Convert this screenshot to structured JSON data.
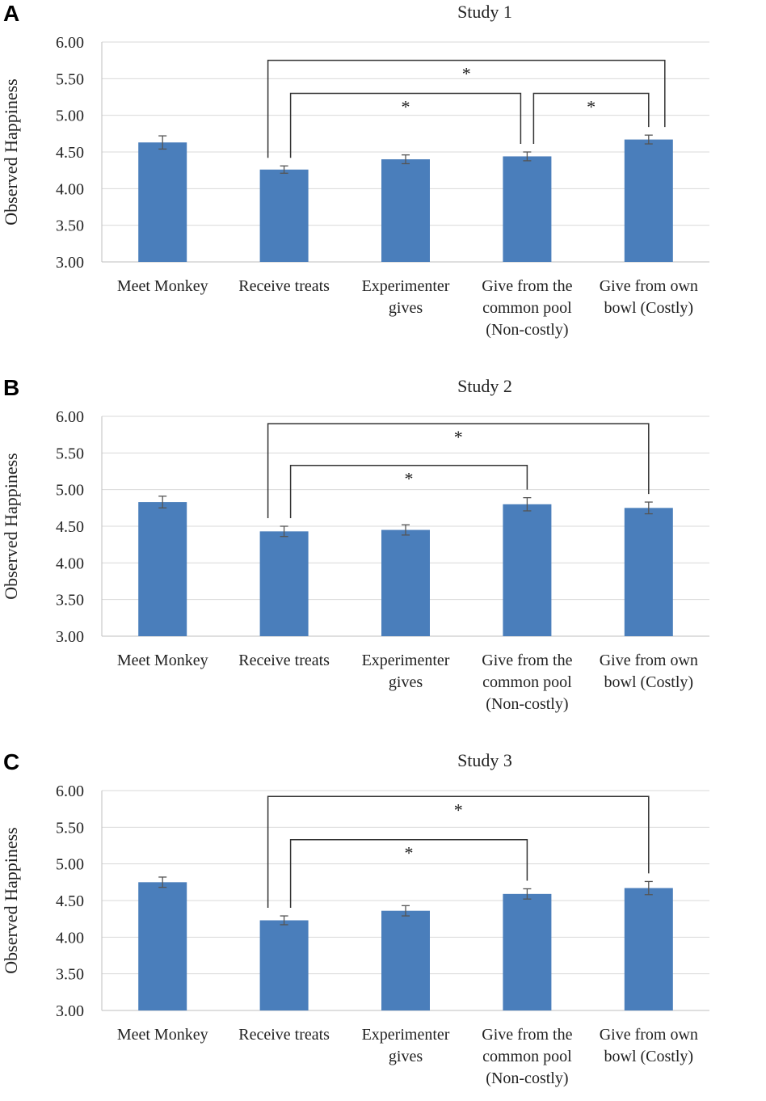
{
  "chart_data": [
    {
      "panel": "A",
      "type": "bar",
      "title": "Study 1",
      "ylabel": "Observed Happiness",
      "ylim": [
        3.0,
        6.0
      ],
      "yticks": [
        "3.00",
        "3.50",
        "4.00",
        "4.50",
        "5.00",
        "5.50",
        "6.00"
      ],
      "categories": [
        [
          "Meet Monkey"
        ],
        [
          "Receive treats"
        ],
        [
          "Experimenter",
          "gives"
        ],
        [
          "Give from the",
          "common pool",
          "(Non-costly)"
        ],
        [
          "Give from own",
          "bowl (Costly)"
        ]
      ],
      "values": [
        4.63,
        4.26,
        4.4,
        4.44,
        4.67
      ],
      "errors": [
        0.09,
        0.05,
        0.06,
        0.06,
        0.06
      ],
      "significance": [
        {
          "from": 1,
          "to": 4,
          "level": 5.75,
          "label": "*"
        },
        {
          "from": 1,
          "to": 3,
          "level": 5.3,
          "label": "*"
        },
        {
          "from": 3,
          "to": 4,
          "level": 5.3,
          "label": "*"
        }
      ]
    },
    {
      "panel": "B",
      "type": "bar",
      "title": "Study 2",
      "ylabel": "Observed Happiness",
      "ylim": [
        3.0,
        6.0
      ],
      "yticks": [
        "3.00",
        "3.50",
        "4.00",
        "4.50",
        "5.00",
        "5.50",
        "6.00"
      ],
      "categories": [
        [
          "Meet Monkey"
        ],
        [
          "Receive treats"
        ],
        [
          "Experimenter",
          "gives"
        ],
        [
          "Give from the",
          "common pool",
          "(Non-costly)"
        ],
        [
          "Give from own",
          "bowl (Costly)"
        ]
      ],
      "values": [
        4.83,
        4.43,
        4.45,
        4.8,
        4.75
      ],
      "errors": [
        0.08,
        0.07,
        0.07,
        0.09,
        0.08
      ],
      "significance": [
        {
          "from": 1,
          "to": 4,
          "level": 5.9,
          "label": "*"
        },
        {
          "from": 1,
          "to": 3,
          "level": 5.33,
          "label": "*"
        }
      ]
    },
    {
      "panel": "C",
      "type": "bar",
      "title": "Study 3",
      "ylabel": "Observed Happiness",
      "ylim": [
        3.0,
        6.0
      ],
      "yticks": [
        "3.00",
        "3.50",
        "4.00",
        "4.50",
        "5.00",
        "5.50",
        "6.00"
      ],
      "categories": [
        [
          "Meet Monkey"
        ],
        [
          "Receive treats"
        ],
        [
          "Experimenter",
          "gives"
        ],
        [
          "Give from the",
          "common pool",
          "(Non-costly)"
        ],
        [
          "Give from own",
          "bowl (Costly)"
        ]
      ],
      "values": [
        4.75,
        4.23,
        4.36,
        4.59,
        4.67
      ],
      "errors": [
        0.07,
        0.06,
        0.07,
        0.07,
        0.09
      ],
      "significance": [
        {
          "from": 1,
          "to": 4,
          "level": 5.92,
          "label": "*"
        },
        {
          "from": 1,
          "to": 3,
          "level": 5.33,
          "label": "*"
        }
      ]
    }
  ]
}
